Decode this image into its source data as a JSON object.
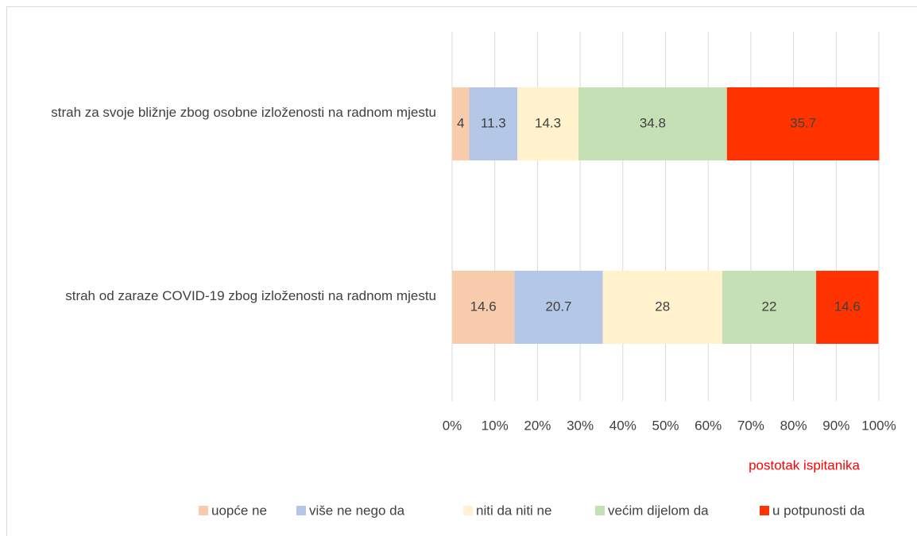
{
  "chart_data": {
    "type": "stacked_barh",
    "categories": [
      "strah za svoje bližnje zbog osobne izloženosti na radnom mjestu",
      "strah od zaraze COVID-19 zbog izloženosti na radnom mjestu"
    ],
    "series": [
      {
        "name": "uopće ne",
        "color": "#f8cbad",
        "values": [
          4,
          14.6
        ]
      },
      {
        "name": "više ne nego da",
        "color": "#b4c7e7",
        "values": [
          11.3,
          20.7
        ]
      },
      {
        "name": "niti da niti ne",
        "color": "#fff2cc",
        "values": [
          14.3,
          28
        ]
      },
      {
        "name": "većim dijelom da",
        "color": "#c5e0b4",
        "values": [
          34.8,
          22
        ]
      },
      {
        "name": "u potpunosti da",
        "color": "#ff3300",
        "values": [
          35.7,
          14.6
        ]
      }
    ],
    "xlabel": "postotak ispitanika",
    "xlim": [
      0,
      100
    ],
    "xticks": [
      {
        "value": 0,
        "label": "0%"
      },
      {
        "value": 10,
        "label": "10%"
      },
      {
        "value": 20,
        "label": "20%"
      },
      {
        "value": 30,
        "label": "30%"
      },
      {
        "value": 40,
        "label": "40%"
      },
      {
        "value": 50,
        "label": "50%"
      },
      {
        "value": 60,
        "label": "60%"
      },
      {
        "value": 70,
        "label": "70%"
      },
      {
        "value": 80,
        "label": "80%"
      },
      {
        "value": 90,
        "label": "90%"
      },
      {
        "value": 100,
        "label": "100%"
      }
    ],
    "grid": true,
    "legend": "bottom"
  }
}
